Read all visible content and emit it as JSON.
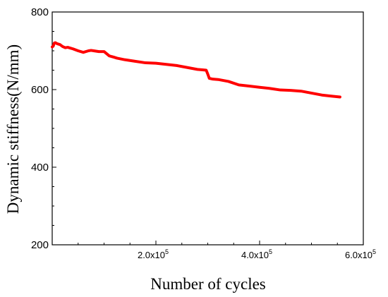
{
  "chart_data": {
    "type": "line",
    "title": "",
    "xlabel": "Number of cycles",
    "ylabel": "Dynamic stiffness(N/mm)",
    "xlim": [
      0,
      600000
    ],
    "ylim": [
      200,
      800
    ],
    "grid": false,
    "legend": "none",
    "line_color": "#ff0000",
    "x_ticks": [
      {
        "value": 200000,
        "mantissa": "2.0x10",
        "exp": "5"
      },
      {
        "value": 400000,
        "mantissa": "4.0x10",
        "exp": "5"
      },
      {
        "value": 600000,
        "mantissa": "6.0x10",
        "exp": "5"
      }
    ],
    "y_ticks": [
      {
        "value": 200,
        "label": "200"
      },
      {
        "value": 400,
        "label": "400"
      },
      {
        "value": 600,
        "label": "600"
      },
      {
        "value": 800,
        "label": "800"
      }
    ],
    "x_minor_step": 50000,
    "y_minor_step": 50,
    "series": [
      {
        "x": [
          0,
          2000,
          4000,
          6000,
          10000,
          15000,
          20000,
          25000,
          30000,
          35000,
          40000,
          50000,
          60000,
          70000,
          75000,
          80000,
          90000,
          100000,
          110000,
          115000,
          118000,
          125000,
          140000,
          160000,
          180000,
          200000,
          220000,
          240000,
          260000,
          280000,
          290000,
          297000,
          300000,
          303000,
          310000,
          320000,
          340000,
          360000,
          380000,
          400000,
          420000,
          440000,
          460000,
          480000,
          500000,
          520000,
          540000,
          555000
        ],
        "y": [
          710,
          712,
          720,
          721,
          718,
          716,
          711,
          708,
          709,
          707,
          705,
          700,
          696,
          700,
          701,
          700,
          698,
          698,
          687,
          685,
          684,
          681,
          677,
          673,
          669,
          668,
          665,
          662,
          657,
          652,
          651,
          650,
          640,
          629,
          627,
          626,
          621,
          612,
          609,
          606,
          603,
          599,
          598,
          596,
          591,
          586,
          583,
          581
        ]
      }
    ]
  }
}
